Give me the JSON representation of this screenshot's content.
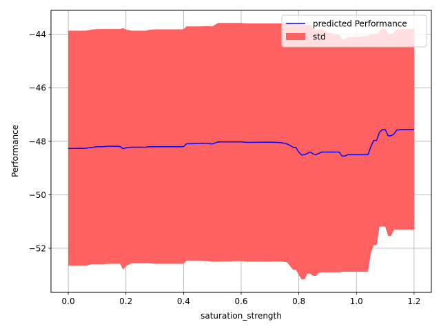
{
  "chart_data": {
    "type": "line",
    "title": "",
    "xlabel": "saturation_strength",
    "ylabel": "Performance",
    "xlim": [
      -0.06,
      1.26
    ],
    "ylim": [
      -53.65,
      -43.1
    ],
    "xticks": [
      0.0,
      0.2,
      0.4,
      0.6,
      0.8,
      1.0,
      1.2
    ],
    "xtick_labels": [
      "0.0",
      "0.2",
      "0.4",
      "0.6",
      "0.8",
      "1.0",
      "1.2"
    ],
    "yticks": [
      -52,
      -50,
      -48,
      -46,
      -44
    ],
    "ytick_labels": [
      "−52",
      "−50",
      "−48",
      "−46",
      "−44"
    ],
    "grid": true,
    "legend_position": "top-right",
    "series": [
      {
        "name": "predicted Performance",
        "kind": "line",
        "color": "#0000ff",
        "x": [
          0.0,
          0.06,
          0.08,
          0.1,
          0.12,
          0.14,
          0.18,
          0.19,
          0.2,
          0.22,
          0.27,
          0.28,
          0.3,
          0.4,
          0.41,
          0.46,
          0.48,
          0.5,
          0.52,
          0.6,
          0.62,
          0.7,
          0.74,
          0.76,
          0.78,
          0.79,
          0.8,
          0.81,
          0.82,
          0.83,
          0.84,
          0.85,
          0.86,
          0.87,
          0.88,
          0.9,
          0.93,
          0.94,
          0.95,
          0.96,
          0.97,
          1.0,
          1.04,
          1.05,
          1.06,
          1.07,
          1.08,
          1.09,
          1.1,
          1.11,
          1.12,
          1.13,
          1.14,
          1.16,
          1.2
        ],
        "y": [
          -48.27,
          -48.26,
          -48.23,
          -48.2,
          -48.2,
          -48.18,
          -48.19,
          -48.28,
          -48.24,
          -48.22,
          -48.22,
          -48.2,
          -48.2,
          -48.2,
          -48.09,
          -48.08,
          -48.07,
          -48.1,
          -48.02,
          -48.02,
          -48.04,
          -48.03,
          -48.05,
          -48.1,
          -48.22,
          -48.23,
          -48.4,
          -48.51,
          -48.5,
          -48.45,
          -48.4,
          -48.47,
          -48.5,
          -48.45,
          -48.4,
          -48.4,
          -48.4,
          -48.4,
          -48.55,
          -48.55,
          -48.5,
          -48.5,
          -48.5,
          -48.2,
          -47.97,
          -47.97,
          -47.66,
          -47.56,
          -47.56,
          -47.79,
          -47.79,
          -47.73,
          -47.58,
          -47.56,
          -47.56
        ]
      },
      {
        "name": "std",
        "kind": "band",
        "color": "#ff6161",
        "x": [
          0.0,
          0.06,
          0.08,
          0.1,
          0.12,
          0.14,
          0.18,
          0.19,
          0.2,
          0.22,
          0.27,
          0.28,
          0.3,
          0.4,
          0.41,
          0.46,
          0.48,
          0.5,
          0.52,
          0.6,
          0.62,
          0.7,
          0.74,
          0.76,
          0.78,
          0.79,
          0.8,
          0.81,
          0.82,
          0.83,
          0.84,
          0.85,
          0.86,
          0.87,
          0.88,
          0.9,
          0.93,
          0.94,
          0.95,
          0.96,
          0.97,
          1.0,
          1.04,
          1.05,
          1.06,
          1.07,
          1.08,
          1.09,
          1.1,
          1.11,
          1.12,
          1.13,
          1.14,
          1.16,
          1.2
        ],
        "upper": [
          -43.86,
          -43.86,
          -43.82,
          -43.8,
          -43.8,
          -43.8,
          -43.8,
          -43.76,
          -43.82,
          -43.86,
          -43.86,
          -43.83,
          -43.81,
          -43.81,
          -43.7,
          -43.7,
          -43.69,
          -43.7,
          -43.57,
          -43.57,
          -43.59,
          -43.59,
          -43.59,
          -43.59,
          -43.63,
          -43.63,
          -43.63,
          -43.64,
          -43.64,
          -43.64,
          -43.64,
          -43.75,
          -43.86,
          -43.8,
          -43.8,
          -43.93,
          -44.0,
          -44.0,
          -44.18,
          -44.18,
          -44.1,
          -44.1,
          -44.05,
          -44.0,
          -44.0,
          -44.0,
          -43.88,
          -43.78,
          -43.78,
          -44.0,
          -44.0,
          -43.93,
          -43.82,
          -43.8,
          -43.8
        ],
        "lower": [
          -52.65,
          -52.65,
          -52.6,
          -52.6,
          -52.6,
          -52.58,
          -52.58,
          -52.8,
          -52.66,
          -52.56,
          -52.56,
          -52.56,
          -52.58,
          -52.58,
          -52.47,
          -52.47,
          -52.48,
          -52.5,
          -52.5,
          -52.48,
          -52.5,
          -52.5,
          -52.49,
          -52.53,
          -52.8,
          -52.8,
          -53.0,
          -53.16,
          -53.16,
          -52.95,
          -52.95,
          -53.03,
          -53.03,
          -52.92,
          -52.9,
          -52.9,
          -52.9,
          -52.9,
          -52.88,
          -52.88,
          -52.88,
          -52.88,
          -52.88,
          -52.18,
          -51.88,
          -51.88,
          -51.19,
          -51.19,
          -51.19,
          -51.54,
          -51.54,
          -51.3,
          -51.3,
          -51.3,
          -51.3
        ]
      }
    ]
  }
}
